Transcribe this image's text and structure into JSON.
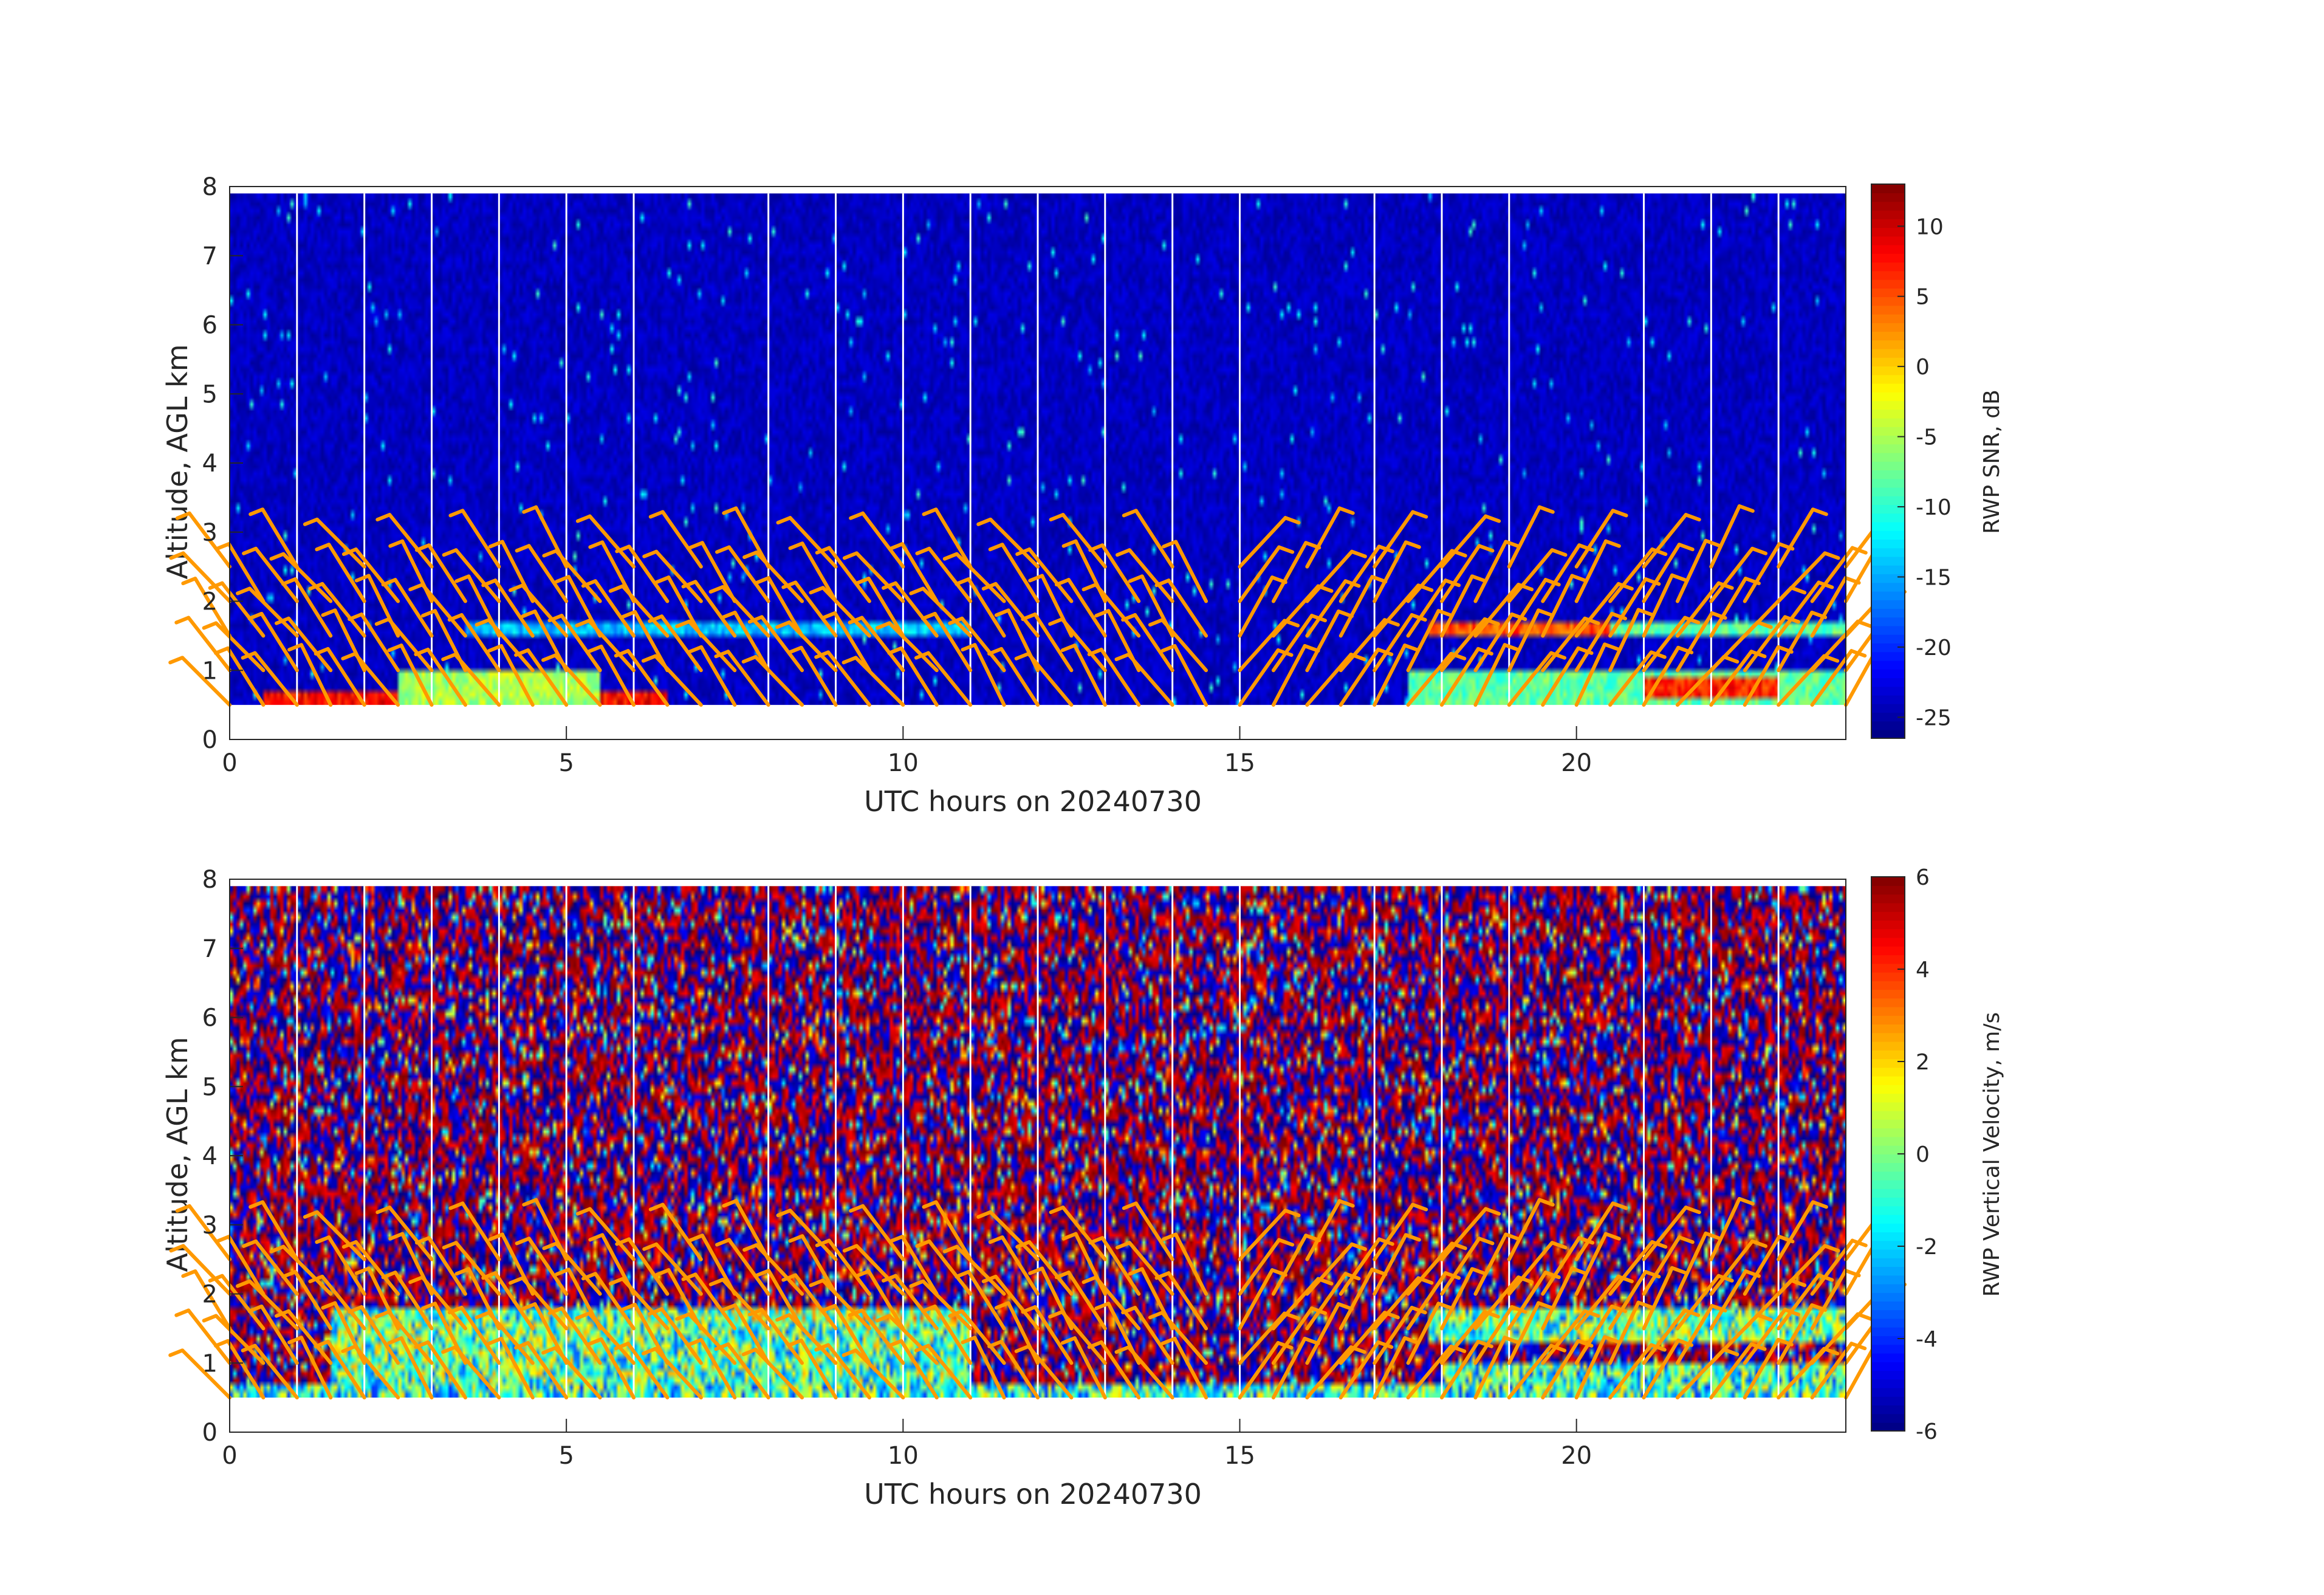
{
  "chart_data": [
    {
      "type": "heatmap",
      "title": "",
      "xlabel": "UTC hours on 20240730",
      "ylabel": "Altitude, AGL km",
      "xlim": [
        0,
        24
      ],
      "ylim": [
        0,
        8
      ],
      "xticks": [
        0,
        5,
        10,
        15,
        20
      ],
      "yticks": [
        0,
        1,
        2,
        3,
        4,
        5,
        6,
        7,
        8
      ],
      "data_altitude_range_km": [
        0.5,
        7.9
      ],
      "colorbar": {
        "label": "RWP SNR, dB",
        "colormap": "jet",
        "clim": [
          -26.5,
          13
        ],
        "ticks": [
          10,
          5,
          0,
          -5,
          -10,
          -15,
          -20,
          -25
        ]
      },
      "background_value": -24,
      "data_gap_hours": [
        1,
        2,
        3,
        4,
        5,
        6,
        8,
        9,
        10,
        11,
        12,
        13,
        14,
        15,
        17,
        18,
        19,
        21,
        22,
        23
      ],
      "features": [
        {
          "note": "low-level high SNR layer",
          "x_range": [
            0.5,
            6.5
          ],
          "alt_range": [
            0.5,
            0.7
          ],
          "value": 8
        },
        {
          "note": "boundary layer",
          "x_range": [
            2.5,
            5.5
          ],
          "alt_range": [
            0.5,
            1.0
          ],
          "value": -5
        },
        {
          "note": "elevated layer",
          "x_range": [
            3.5,
            11
          ],
          "alt_range": [
            1.5,
            1.7
          ],
          "value": -14
        },
        {
          "note": "elevated layer",
          "x_range": [
            17.8,
            20.5
          ],
          "alt_range": [
            1.5,
            1.65
          ],
          "value": 5
        },
        {
          "note": "elevated layer",
          "x_range": [
            20.5,
            24
          ],
          "alt_range": [
            1.5,
            1.65
          ],
          "value": -8
        },
        {
          "note": "low-level layer",
          "x_range": [
            17.5,
            24
          ],
          "alt_range": [
            0.5,
            1.0
          ],
          "value": -8
        },
        {
          "note": "low-level high SNR layer",
          "x_range": [
            21,
            23
          ],
          "alt_range": [
            0.6,
            0.9
          ],
          "value": 7
        }
      ],
      "wind_barbs": {
        "color": "#FF9900",
        "times_hours": [
          0,
          0.5,
          1,
          1.5,
          2,
          2.5,
          3,
          3.5,
          4,
          4.5,
          5,
          5.5,
          6,
          6.5,
          7,
          7.5,
          8,
          8.5,
          9,
          9.5,
          10,
          10.5,
          11,
          11.5,
          12,
          12.5,
          13,
          13.5,
          14,
          14.5,
          15,
          15.5,
          16,
          16.5,
          17,
          17.5,
          18,
          18.5,
          19,
          19.5,
          20,
          20.5,
          21,
          21.5,
          22,
          22.5,
          23,
          23.5,
          24
        ],
        "altitudes_km": [
          0.5,
          1.0,
          1.5,
          2.0,
          2.5
        ]
      }
    },
    {
      "type": "heatmap",
      "title": "",
      "xlabel": "UTC hours on 20240730",
      "ylabel": "Altitude, AGL km",
      "xlim": [
        0,
        24
      ],
      "ylim": [
        0,
        8
      ],
      "xticks": [
        0,
        5,
        10,
        15,
        20
      ],
      "yticks": [
        0,
        1,
        2,
        3,
        4,
        5,
        6,
        7,
        8
      ],
      "data_altitude_range_km": [
        0.5,
        7.9
      ],
      "colorbar": {
        "label": "RWP Vertical Velocity, m/s",
        "colormap": "jet",
        "clim": [
          -6,
          6
        ],
        "ticks": [
          6,
          4,
          2,
          0,
          -2,
          -4,
          -6
        ]
      },
      "background_value": "noise",
      "data_gap_hours": [
        1,
        2,
        3,
        4,
        5,
        6,
        8,
        9,
        10,
        11,
        12,
        13,
        14,
        15,
        17,
        18,
        19,
        21,
        22,
        23
      ],
      "features": [
        {
          "note": "coherent near-zero velocity layer",
          "x_range": [
            0,
            24
          ],
          "alt_range": [
            0.5,
            0.7
          ],
          "value": -1
        },
        {
          "note": "boundary layer",
          "x_range": [
            1.5,
            11
          ],
          "alt_range": [
            0.7,
            1.8
          ],
          "value": -0.5
        },
        {
          "note": "elevated layer",
          "x_range": [
            7.5,
            11
          ],
          "alt_range": [
            1.6,
            1.75
          ],
          "value": 0.5
        },
        {
          "note": "elevated layer",
          "x_range": [
            17.8,
            24
          ],
          "alt_range": [
            1.3,
            1.75
          ],
          "value": -0.5
        },
        {
          "note": "low-level layer",
          "x_range": [
            18,
            24
          ],
          "alt_range": [
            0.5,
            1.0
          ],
          "value": -1
        }
      ],
      "wind_barbs": {
        "color": "#FF9900",
        "times_hours": [
          0,
          0.5,
          1,
          1.5,
          2,
          2.5,
          3,
          3.5,
          4,
          4.5,
          5,
          5.5,
          6,
          6.5,
          7,
          7.5,
          8,
          8.5,
          9,
          9.5,
          10,
          10.5,
          11,
          11.5,
          12,
          12.5,
          13,
          13.5,
          14,
          14.5,
          15,
          15.5,
          16,
          16.5,
          17,
          17.5,
          18,
          18.5,
          19,
          19.5,
          20,
          20.5,
          21,
          21.5,
          22,
          22.5,
          23,
          23.5,
          24
        ],
        "altitudes_km": [
          0.5,
          1.0,
          1.5,
          2.0,
          2.5
        ]
      }
    }
  ]
}
